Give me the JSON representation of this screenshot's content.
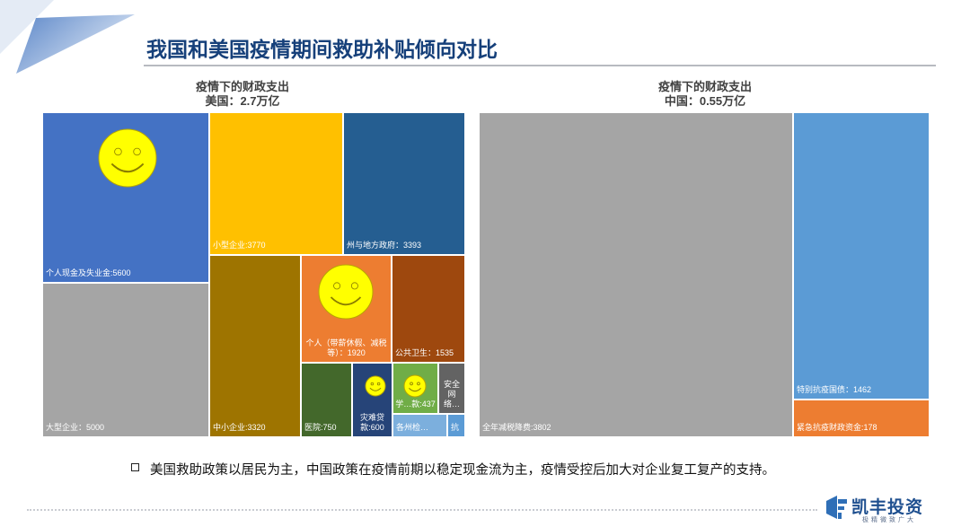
{
  "page": {
    "title": "我国和美国疫情期间救助补贴倾向对比",
    "note": "美国救助政策以居民为主，中国政策在疫情前期以稳定现金流为主，疫情受控后加大对企业复工复产的支持。",
    "logo": {
      "name": "凯丰投资",
      "slogan": "极精微致广大"
    }
  },
  "chart_data": [
    {
      "type": "treemap",
      "title": "疫情下的财政支出",
      "subtitle": "美国：2.7万亿",
      "items": [
        {
          "label": "个人现金及失业金:5600",
          "value": 5600,
          "color": "#4472c4"
        },
        {
          "label": "大型企业：5000",
          "value": 5000,
          "color": "#a5a5a5"
        },
        {
          "label": "小型企业:3770",
          "value": 3770,
          "color": "#ffc000"
        },
        {
          "label": "州与地方政府：3393",
          "value": 3393,
          "color": "#255e91"
        },
        {
          "label": "中小企业:3320",
          "value": 3320,
          "color": "#9e7400"
        },
        {
          "label": "个人（带薪休假、减税等）：1920",
          "value": 1920,
          "color": "#ed7d31"
        },
        {
          "label": "公共卫生：1535",
          "value": 1535,
          "color": "#9e480e"
        },
        {
          "label": "医院:750",
          "value": 750,
          "color": "#43682b"
        },
        {
          "label": "灾难贷款:600",
          "value": 600,
          "color": "#264478"
        },
        {
          "label": "学…款:437",
          "value": 437,
          "color": "#70ad47"
        },
        {
          "label": "安全网络…",
          "value": null,
          "color": "#636363"
        },
        {
          "label": "各州检…",
          "value": null,
          "color": "#7cafdd"
        },
        {
          "label": "抗",
          "value": null,
          "color": "#5b9bd5"
        }
      ]
    },
    {
      "type": "treemap",
      "title": "疫情下的财政支出",
      "subtitle": "中国：0.55万亿",
      "items": [
        {
          "label": "全年减税降费:3802",
          "value": 3802,
          "color": "#a5a5a5"
        },
        {
          "label": "特别抗疫国债：1462",
          "value": 1462,
          "color": "#5b9bd5"
        },
        {
          "label": "紧急抗疫财政资金:178",
          "value": 178,
          "color": "#ed7d31"
        }
      ]
    }
  ]
}
